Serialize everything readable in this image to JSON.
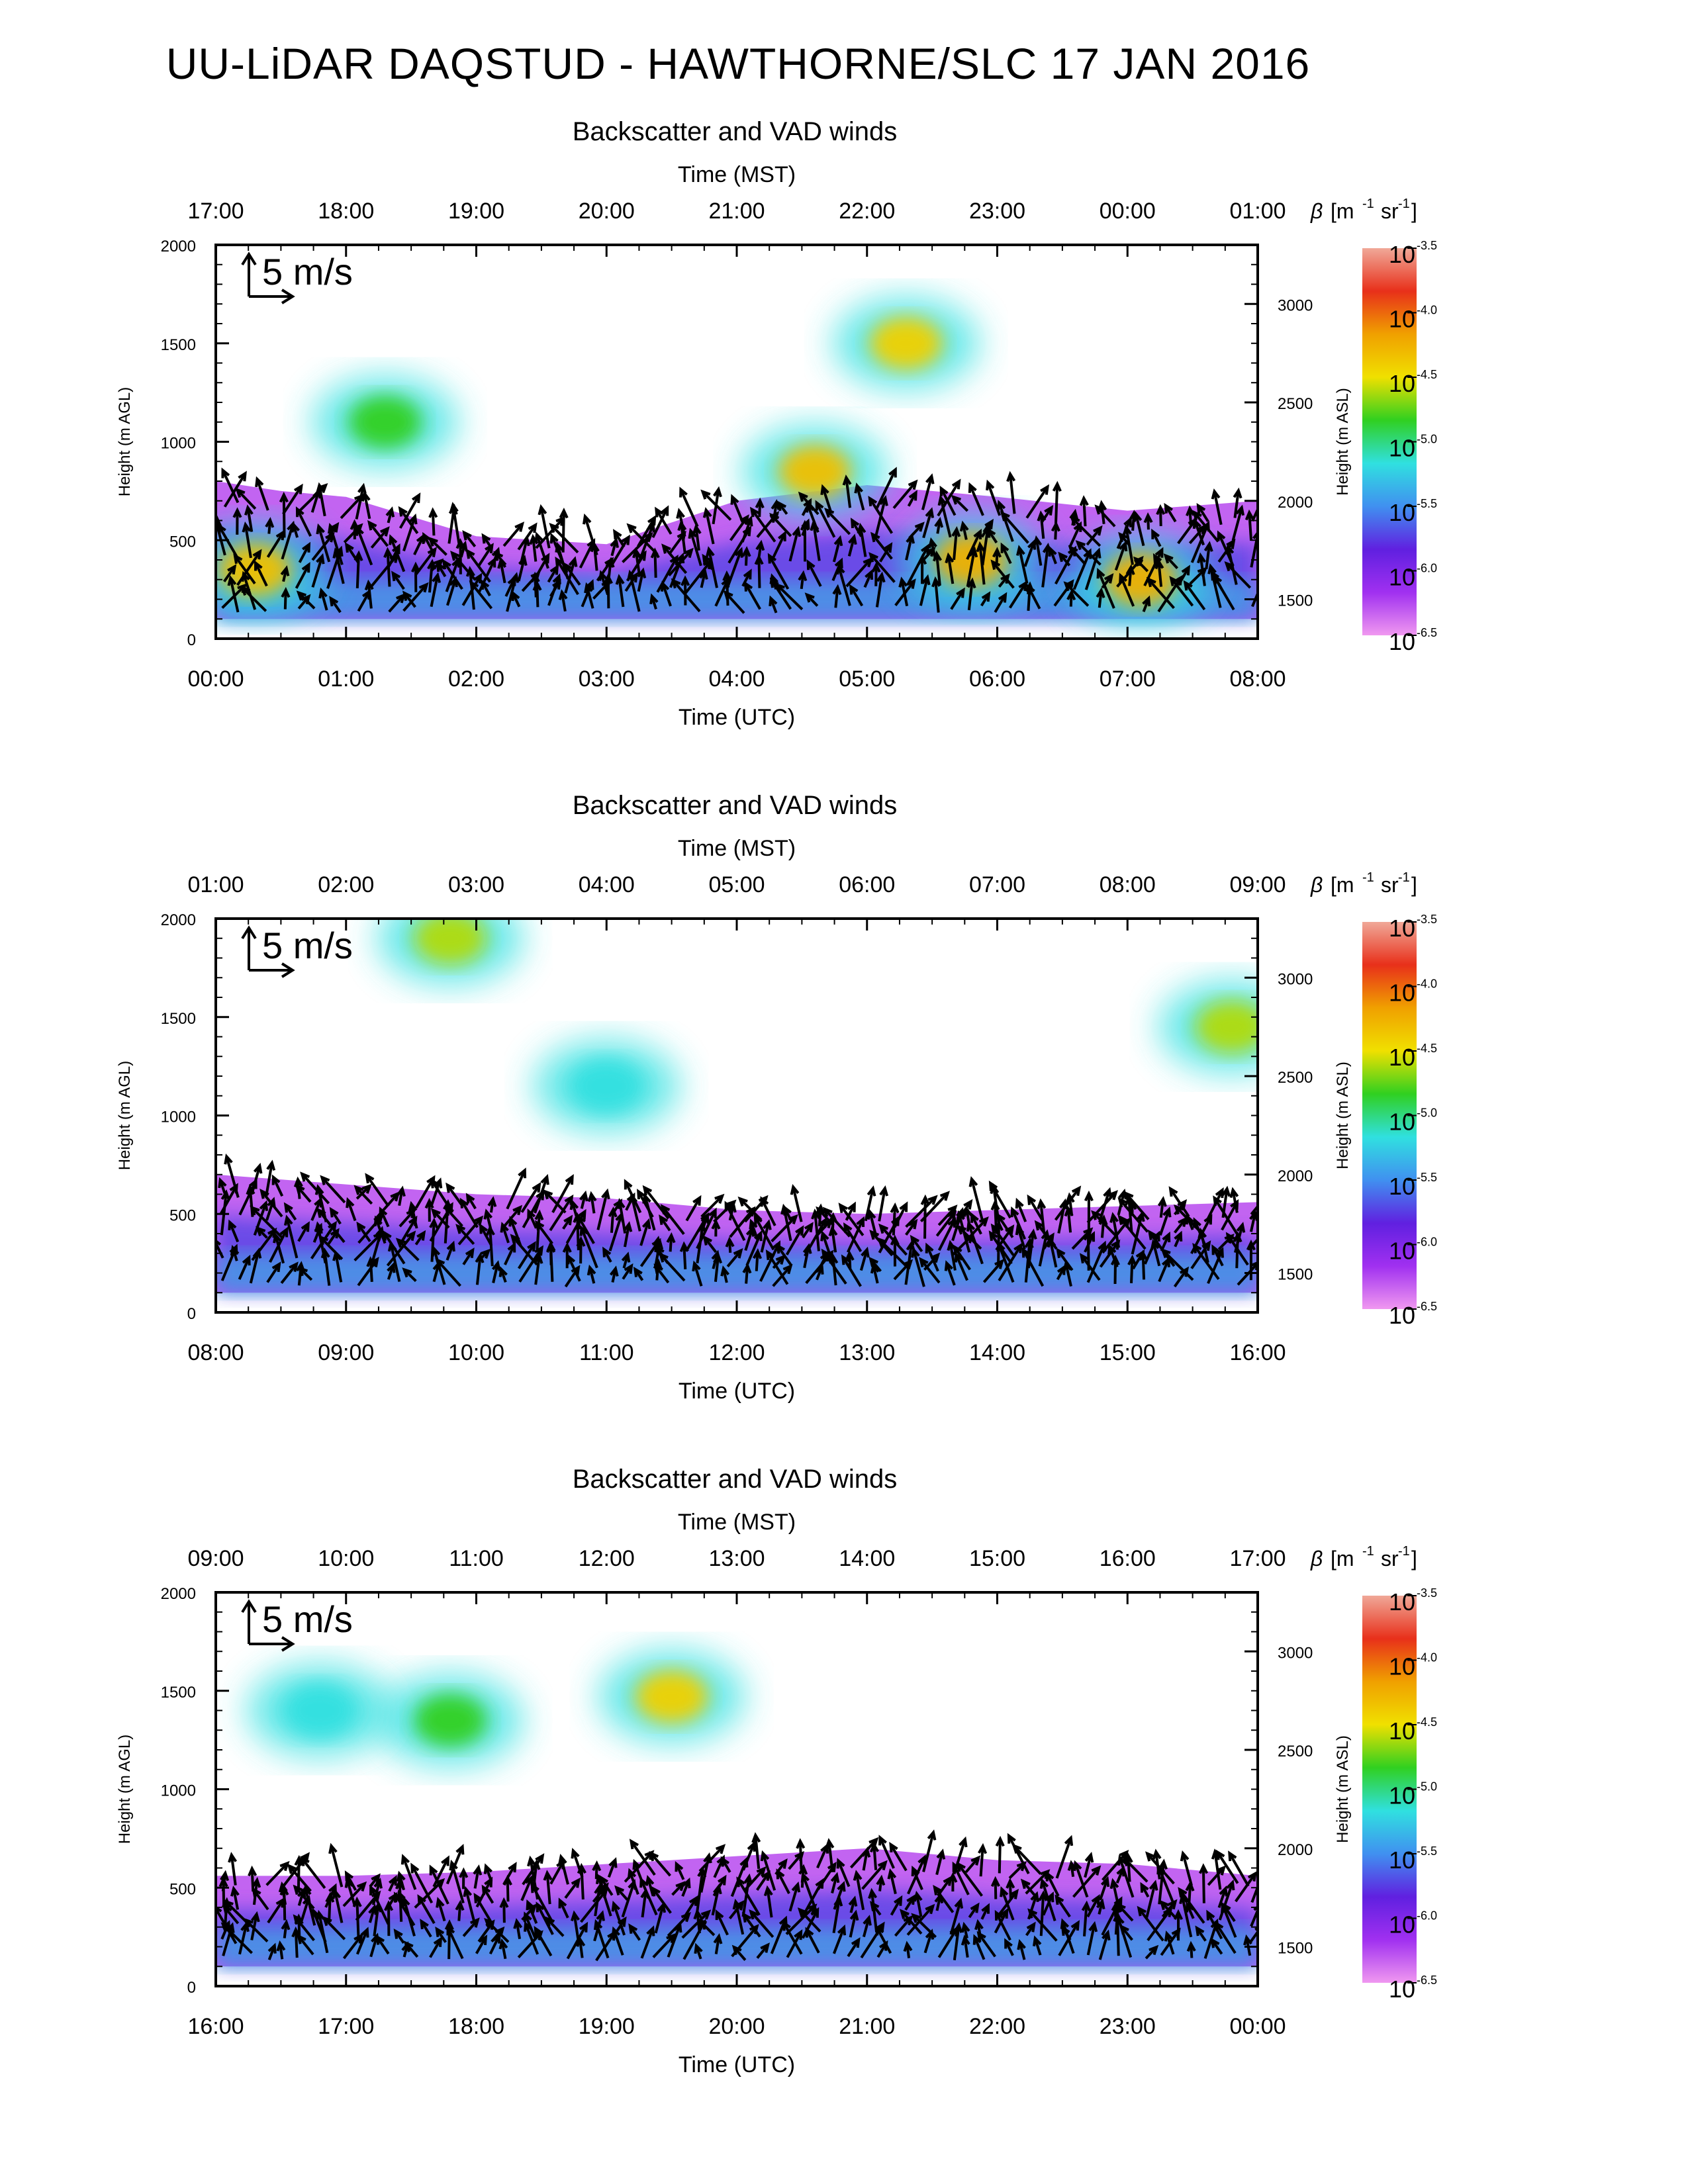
{
  "page": {
    "title": "UU-LiDAR DAQSTUD - HAWTHORNE/SLC 17 JAN 2016"
  },
  "panel_subtitle": "Backscatter and VAD winds",
  "axis_labels": {
    "top": "Time (MST)",
    "bottom": "Time (UTC)",
    "left": "Height (m AGL)",
    "right": "Height (m ASL)",
    "colorbar_title_beta": "β",
    "colorbar_title_units": "[m",
    "colorbar_title_m_exp": "-1",
    "colorbar_title_sr": "sr",
    "colorbar_title_sr_exp": "-1",
    "colorbar_title_close": "]"
  },
  "wind_scale_label": "5 m/s",
  "colorbar": {
    "base": "10",
    "exponents": [
      "-3.5",
      "-4.0",
      "-4.5",
      "-5.0",
      "-5.5",
      "-6.0",
      "-6.5"
    ],
    "colors": [
      "#f0a898",
      "#e8301a",
      "#f0a000",
      "#f0e000",
      "#30d020",
      "#30e0e0",
      "#4090f0",
      "#6020e0",
      "#a030f0",
      "#f098f0"
    ]
  },
  "chart_data": [
    {
      "type": "heatmap",
      "title": "Backscatter and VAD winds",
      "xlabel": "Time (UTC)",
      "x2label": "Time (MST)",
      "ylabel": "Height (m AGL)",
      "y2label": "Height (m ASL)",
      "x_utc_ticks": [
        "00:00",
        "01:00",
        "02:00",
        "03:00",
        "04:00",
        "05:00",
        "06:00",
        "07:00",
        "08:00"
      ],
      "x_mst_ticks": [
        "17:00",
        "18:00",
        "19:00",
        "20:00",
        "21:00",
        "22:00",
        "23:00",
        "00:00",
        "01:00"
      ],
      "y_ticks": [
        "0",
        "500",
        "1000",
        "1500",
        "2000"
      ],
      "y_asl_ticks": [
        "1500",
        "2000",
        "2500",
        "3000"
      ],
      "ylim": [
        0,
        2000
      ],
      "xlim_hours_utc": [
        0,
        8
      ],
      "color_scale": "log10 backscatter, 10^-6.5 to 10^-3.5 m-1 sr-1",
      "aerosol_layer_top_m": [
        [
          0,
          800
        ],
        [
          0.5,
          750
        ],
        [
          1,
          720
        ],
        [
          2,
          520
        ],
        [
          3,
          480
        ],
        [
          4,
          700
        ],
        [
          5,
          780
        ],
        [
          6,
          720
        ],
        [
          7,
          650
        ],
        [
          8,
          700
        ]
      ],
      "hotspots": [
        {
          "t_utc": 0.3,
          "h_m": 350,
          "log_beta": -4.5
        },
        {
          "t_utc": 5.8,
          "h_m": 400,
          "log_beta": -4.4
        },
        {
          "t_utc": 7.1,
          "h_m": 300,
          "log_beta": -4.4
        },
        {
          "t_utc": 4.6,
          "h_m": 850,
          "log_beta": -4.5
        },
        {
          "t_utc": 5.3,
          "h_m": 1500,
          "log_beta": -4.6
        },
        {
          "t_utc": 1.3,
          "h_m": 1100,
          "log_beta": -5.0
        }
      ]
    },
    {
      "type": "heatmap",
      "title": "Backscatter and VAD winds",
      "xlabel": "Time (UTC)",
      "x2label": "Time (MST)",
      "ylabel": "Height (m AGL)",
      "y2label": "Height (m ASL)",
      "x_utc_ticks": [
        "08:00",
        "09:00",
        "10:00",
        "11:00",
        "12:00",
        "13:00",
        "14:00",
        "15:00",
        "16:00"
      ],
      "x_mst_ticks": [
        "01:00",
        "02:00",
        "03:00",
        "04:00",
        "05:00",
        "06:00",
        "07:00",
        "08:00",
        "09:00"
      ],
      "y_ticks": [
        "0",
        "500",
        "1000",
        "1500",
        "2000"
      ],
      "y_asl_ticks": [
        "1500",
        "2000",
        "2500",
        "3000"
      ],
      "ylim": [
        0,
        2000
      ],
      "xlim_hours_utc": [
        8,
        16
      ],
      "color_scale": "log10 backscatter, 10^-6.5 to 10^-3.5 m-1 sr-1",
      "aerosol_layer_top_m": [
        [
          8,
          700
        ],
        [
          9,
          650
        ],
        [
          10,
          600
        ],
        [
          11,
          580
        ],
        [
          12,
          520
        ],
        [
          13,
          500
        ],
        [
          14,
          520
        ],
        [
          15,
          540
        ],
        [
          16,
          560
        ]
      ],
      "hotspots": [
        {
          "t_utc": 9.8,
          "h_m": 1900,
          "log_beta": -4.8
        },
        {
          "t_utc": 15.8,
          "h_m": 1450,
          "log_beta": -4.8
        },
        {
          "t_utc": 11.0,
          "h_m": 1150,
          "log_beta": -5.3
        }
      ]
    },
    {
      "type": "heatmap",
      "title": "Backscatter and VAD winds",
      "xlabel": "Time (UTC)",
      "x2label": "Time (MST)",
      "ylabel": "Height (m AGL)",
      "y2label": "Height (m ASL)",
      "x_utc_ticks": [
        "16:00",
        "17:00",
        "18:00",
        "19:00",
        "20:00",
        "21:00",
        "22:00",
        "23:00",
        "00:00"
      ],
      "x_mst_ticks": [
        "09:00",
        "10:00",
        "11:00",
        "12:00",
        "13:00",
        "14:00",
        "15:00",
        "16:00",
        "17:00"
      ],
      "y_ticks": [
        "0",
        "500",
        "1000",
        "1500",
        "2000"
      ],
      "y_asl_ticks": [
        "1500",
        "2000",
        "2500",
        "3000"
      ],
      "ylim": [
        0,
        2000
      ],
      "xlim_hours_utc": [
        16,
        24
      ],
      "color_scale": "log10 backscatter, 10^-6.5 to 10^-3.5 m-1 sr-1",
      "aerosol_layer_top_m": [
        [
          16,
          560
        ],
        [
          17,
          560
        ],
        [
          18,
          580
        ],
        [
          19,
          620
        ],
        [
          20,
          660
        ],
        [
          21,
          700
        ],
        [
          22,
          640
        ],
        [
          23,
          620
        ],
        [
          24,
          560
        ]
      ],
      "hotspots": [
        {
          "t_utc": 19.5,
          "h_m": 1470,
          "log_beta": -4.6
        },
        {
          "t_utc": 17.8,
          "h_m": 1350,
          "log_beta": -5.0
        },
        {
          "t_utc": 16.8,
          "h_m": 1400,
          "log_beta": -5.3
        }
      ]
    }
  ]
}
